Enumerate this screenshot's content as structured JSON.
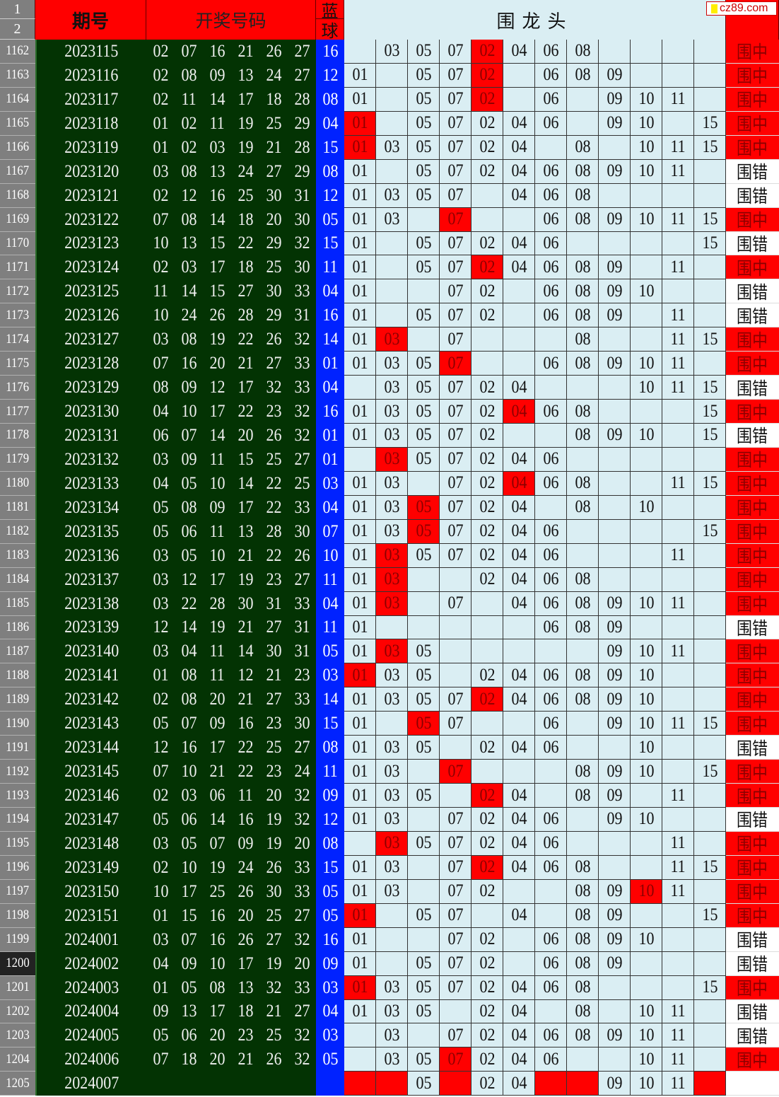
{
  "header": {
    "row1": "1",
    "row2": "2",
    "period": "期号",
    "numbers": "开奖号码",
    "blue_top": "蓝",
    "blue_bottom": "球",
    "group": "围龙头",
    "logo": "cz89.com"
  },
  "colors": {
    "red": "#ff0000",
    "green": "#033303",
    "blue": "#0022ff",
    "cell": "#daeef3"
  },
  "rows": [
    {
      "row": "1162",
      "period": "2023115",
      "numbers": [
        "02",
        "07",
        "16",
        "21",
        "26",
        "27"
      ],
      "blue": "16",
      "cells": [
        "",
        "03",
        "05",
        "07",
        "02",
        "04",
        "06",
        "08",
        "",
        "",
        "",
        ""
      ],
      "hit": [
        4
      ],
      "result": "围中"
    },
    {
      "row": "1163",
      "period": "2023116",
      "numbers": [
        "02",
        "08",
        "09",
        "13",
        "24",
        "27"
      ],
      "blue": "12",
      "cells": [
        "01",
        "",
        "05",
        "07",
        "02",
        "",
        "06",
        "08",
        "09",
        "",
        "",
        ""
      ],
      "hit": [
        4
      ],
      "result": "围中"
    },
    {
      "row": "1164",
      "period": "2023117",
      "numbers": [
        "02",
        "11",
        "14",
        "17",
        "18",
        "28"
      ],
      "blue": "08",
      "cells": [
        "01",
        "",
        "05",
        "07",
        "02",
        "",
        "06",
        "",
        "09",
        "10",
        "11",
        ""
      ],
      "hit": [
        4
      ],
      "result": "围中"
    },
    {
      "row": "1165",
      "period": "2023118",
      "numbers": [
        "01",
        "02",
        "11",
        "19",
        "25",
        "29"
      ],
      "blue": "04",
      "cells": [
        "01",
        "",
        "05",
        "07",
        "02",
        "04",
        "06",
        "",
        "09",
        "10",
        "",
        "15"
      ],
      "hit": [
        0
      ],
      "result": "围中"
    },
    {
      "row": "1166",
      "period": "2023119",
      "numbers": [
        "01",
        "02",
        "03",
        "19",
        "21",
        "28"
      ],
      "blue": "15",
      "cells": [
        "01",
        "03",
        "05",
        "07",
        "02",
        "04",
        "",
        "08",
        "",
        "10",
        "11",
        "15"
      ],
      "hit": [
        0
      ],
      "result": "围中"
    },
    {
      "row": "1167",
      "period": "2023120",
      "numbers": [
        "03",
        "08",
        "13",
        "24",
        "27",
        "29"
      ],
      "blue": "08",
      "cells": [
        "01",
        "",
        "05",
        "07",
        "02",
        "04",
        "06",
        "08",
        "09",
        "10",
        "11",
        ""
      ],
      "hit": [],
      "result": "围错"
    },
    {
      "row": "1168",
      "period": "2023121",
      "numbers": [
        "02",
        "12",
        "16",
        "25",
        "30",
        "31"
      ],
      "blue": "12",
      "cells": [
        "01",
        "03",
        "05",
        "07",
        "",
        "04",
        "06",
        "08",
        "",
        "",
        "",
        ""
      ],
      "hit": [],
      "result": "围错"
    },
    {
      "row": "1169",
      "period": "2023122",
      "numbers": [
        "07",
        "08",
        "14",
        "18",
        "20",
        "30"
      ],
      "blue": "05",
      "cells": [
        "01",
        "03",
        "",
        "07",
        "",
        "",
        "06",
        "08",
        "09",
        "10",
        "11",
        "15"
      ],
      "hit": [
        3
      ],
      "result": "围中"
    },
    {
      "row": "1170",
      "period": "2023123",
      "numbers": [
        "10",
        "13",
        "15",
        "22",
        "29",
        "32"
      ],
      "blue": "15",
      "cells": [
        "01",
        "",
        "05",
        "07",
        "02",
        "04",
        "06",
        "",
        "",
        "",
        "",
        "15"
      ],
      "hit": [],
      "result": "围错"
    },
    {
      "row": "1171",
      "period": "2023124",
      "numbers": [
        "02",
        "03",
        "17",
        "18",
        "25",
        "30"
      ],
      "blue": "11",
      "cells": [
        "01",
        "",
        "05",
        "07",
        "02",
        "04",
        "06",
        "08",
        "09",
        "",
        "11",
        ""
      ],
      "hit": [
        4
      ],
      "result": "围中"
    },
    {
      "row": "1172",
      "period": "2023125",
      "numbers": [
        "11",
        "14",
        "15",
        "27",
        "30",
        "33"
      ],
      "blue": "04",
      "cells": [
        "01",
        "",
        "",
        "07",
        "02",
        "",
        "06",
        "08",
        "09",
        "10",
        "",
        ""
      ],
      "hit": [],
      "result": "围错"
    },
    {
      "row": "1173",
      "period": "2023126",
      "numbers": [
        "10",
        "24",
        "26",
        "28",
        "29",
        "31"
      ],
      "blue": "16",
      "cells": [
        "01",
        "",
        "05",
        "07",
        "02",
        "",
        "06",
        "08",
        "09",
        "",
        "11",
        ""
      ],
      "hit": [],
      "result": "围错"
    },
    {
      "row": "1174",
      "period": "2023127",
      "numbers": [
        "03",
        "08",
        "19",
        "22",
        "26",
        "32"
      ],
      "blue": "14",
      "cells": [
        "01",
        "03",
        "",
        "07",
        "",
        "",
        "",
        "08",
        "",
        "",
        "11",
        "15"
      ],
      "hit": [
        1
      ],
      "result": "围中"
    },
    {
      "row": "1175",
      "period": "2023128",
      "numbers": [
        "07",
        "16",
        "20",
        "21",
        "27",
        "33"
      ],
      "blue": "01",
      "cells": [
        "01",
        "03",
        "05",
        "07",
        "",
        "",
        "06",
        "08",
        "09",
        "10",
        "11",
        ""
      ],
      "hit": [
        3
      ],
      "result": "围中"
    },
    {
      "row": "1176",
      "period": "2023129",
      "numbers": [
        "08",
        "09",
        "12",
        "17",
        "32",
        "33"
      ],
      "blue": "04",
      "cells": [
        "",
        "03",
        "05",
        "07",
        "02",
        "04",
        "",
        "",
        "",
        "10",
        "11",
        "15"
      ],
      "hit": [],
      "result": "围错"
    },
    {
      "row": "1177",
      "period": "2023130",
      "numbers": [
        "04",
        "10",
        "17",
        "22",
        "23",
        "32"
      ],
      "blue": "16",
      "cells": [
        "01",
        "03",
        "05",
        "07",
        "02",
        "04",
        "06",
        "08",
        "",
        "",
        "",
        "15"
      ],
      "hit": [
        5
      ],
      "result": "围中"
    },
    {
      "row": "1178",
      "period": "2023131",
      "numbers": [
        "06",
        "07",
        "14",
        "20",
        "26",
        "32"
      ],
      "blue": "01",
      "cells": [
        "01",
        "03",
        "05",
        "07",
        "02",
        "",
        "",
        "08",
        "09",
        "10",
        "",
        "15"
      ],
      "hit": [],
      "result": "围错"
    },
    {
      "row": "1179",
      "period": "2023132",
      "numbers": [
        "03",
        "09",
        "11",
        "15",
        "25",
        "27"
      ],
      "blue": "01",
      "cells": [
        "",
        "03",
        "05",
        "07",
        "02",
        "04",
        "06",
        "",
        "",
        "",
        "",
        ""
      ],
      "hit": [
        1
      ],
      "result": "围中"
    },
    {
      "row": "1180",
      "period": "2023133",
      "numbers": [
        "04",
        "05",
        "10",
        "14",
        "22",
        "25"
      ],
      "blue": "03",
      "cells": [
        "01",
        "03",
        "",
        "07",
        "02",
        "04",
        "06",
        "08",
        "",
        "",
        "11",
        "15"
      ],
      "hit": [
        5
      ],
      "result": "围中"
    },
    {
      "row": "1181",
      "period": "2023134",
      "numbers": [
        "05",
        "08",
        "09",
        "17",
        "22",
        "33"
      ],
      "blue": "04",
      "cells": [
        "01",
        "03",
        "05",
        "07",
        "02",
        "04",
        "",
        "08",
        "",
        "10",
        "",
        ""
      ],
      "hit": [
        2
      ],
      "result": "围中"
    },
    {
      "row": "1182",
      "period": "2023135",
      "numbers": [
        "05",
        "06",
        "11",
        "13",
        "28",
        "30"
      ],
      "blue": "07",
      "cells": [
        "01",
        "03",
        "05",
        "07",
        "02",
        "04",
        "06",
        "",
        "",
        "",
        "",
        "15"
      ],
      "hit": [
        2
      ],
      "result": "围中"
    },
    {
      "row": "1183",
      "period": "2023136",
      "numbers": [
        "03",
        "05",
        "10",
        "21",
        "22",
        "26"
      ],
      "blue": "10",
      "cells": [
        "01",
        "03",
        "05",
        "07",
        "02",
        "04",
        "06",
        "",
        "",
        "",
        "11",
        ""
      ],
      "hit": [
        1
      ],
      "result": "围中"
    },
    {
      "row": "1184",
      "period": "2023137",
      "numbers": [
        "03",
        "12",
        "17",
        "19",
        "23",
        "27"
      ],
      "blue": "11",
      "cells": [
        "01",
        "03",
        "",
        "",
        "02",
        "04",
        "06",
        "08",
        "",
        "",
        "",
        ""
      ],
      "hit": [
        1
      ],
      "result": "围中"
    },
    {
      "row": "1185",
      "period": "2023138",
      "numbers": [
        "03",
        "22",
        "28",
        "30",
        "31",
        "33"
      ],
      "blue": "04",
      "cells": [
        "01",
        "03",
        "",
        "07",
        "",
        "04",
        "06",
        "08",
        "09",
        "10",
        "11",
        ""
      ],
      "hit": [
        1
      ],
      "result": "围中"
    },
    {
      "row": "1186",
      "period": "2023139",
      "numbers": [
        "12",
        "14",
        "19",
        "21",
        "27",
        "31"
      ],
      "blue": "11",
      "cells": [
        "01",
        "",
        "",
        "",
        "",
        "",
        "06",
        "08",
        "09",
        "",
        "",
        ""
      ],
      "hit": [],
      "result": "围错"
    },
    {
      "row": "1187",
      "period": "2023140",
      "numbers": [
        "03",
        "04",
        "11",
        "14",
        "30",
        "31"
      ],
      "blue": "05",
      "cells": [
        "01",
        "03",
        "05",
        "",
        "",
        "",
        "",
        "",
        "09",
        "10",
        "11",
        ""
      ],
      "hit": [
        1
      ],
      "result": "围中"
    },
    {
      "row": "1188",
      "period": "2023141",
      "numbers": [
        "01",
        "08",
        "11",
        "12",
        "21",
        "23"
      ],
      "blue": "03",
      "cells": [
        "01",
        "03",
        "05",
        "",
        "02",
        "04",
        "06",
        "08",
        "09",
        "10",
        "",
        ""
      ],
      "hit": [
        0
      ],
      "result": "围中"
    },
    {
      "row": "1189",
      "period": "2023142",
      "numbers": [
        "02",
        "08",
        "20",
        "21",
        "27",
        "33"
      ],
      "blue": "14",
      "cells": [
        "01",
        "03",
        "05",
        "07",
        "02",
        "04",
        "06",
        "08",
        "09",
        "10",
        "",
        ""
      ],
      "hit": [
        4
      ],
      "result": "围中"
    },
    {
      "row": "1190",
      "period": "2023143",
      "numbers": [
        "05",
        "07",
        "09",
        "16",
        "23",
        "30"
      ],
      "blue": "15",
      "cells": [
        "01",
        "",
        "05",
        "07",
        "",
        "",
        "06",
        "",
        "09",
        "10",
        "11",
        "15"
      ],
      "hit": [
        2
      ],
      "result": "围中"
    },
    {
      "row": "1191",
      "period": "2023144",
      "numbers": [
        "12",
        "16",
        "17",
        "22",
        "25",
        "27"
      ],
      "blue": "08",
      "cells": [
        "01",
        "03",
        "05",
        "",
        "02",
        "04",
        "06",
        "",
        "",
        "10",
        "",
        ""
      ],
      "hit": [],
      "result": "围错"
    },
    {
      "row": "1192",
      "period": "2023145",
      "numbers": [
        "07",
        "10",
        "21",
        "22",
        "23",
        "24"
      ],
      "blue": "11",
      "cells": [
        "01",
        "03",
        "",
        "07",
        "",
        "",
        "",
        "08",
        "09",
        "10",
        "",
        "15"
      ],
      "hit": [
        3
      ],
      "result": "围中"
    },
    {
      "row": "1193",
      "period": "2023146",
      "numbers": [
        "02",
        "03",
        "06",
        "11",
        "20",
        "32"
      ],
      "blue": "09",
      "cells": [
        "01",
        "03",
        "05",
        "",
        "02",
        "04",
        "",
        "08",
        "09",
        "",
        "11",
        ""
      ],
      "hit": [
        4
      ],
      "result": "围中"
    },
    {
      "row": "1194",
      "period": "2023147",
      "numbers": [
        "05",
        "06",
        "14",
        "16",
        "19",
        "32"
      ],
      "blue": "12",
      "cells": [
        "01",
        "03",
        "",
        "07",
        "02",
        "04",
        "06",
        "",
        "09",
        "10",
        "",
        ""
      ],
      "hit": [],
      "result": "围错"
    },
    {
      "row": "1195",
      "period": "2023148",
      "numbers": [
        "03",
        "05",
        "07",
        "09",
        "19",
        "20"
      ],
      "blue": "08",
      "cells": [
        "",
        "03",
        "05",
        "07",
        "02",
        "04",
        "06",
        "",
        "",
        "",
        "11",
        ""
      ],
      "hit": [
        1
      ],
      "result": "围中"
    },
    {
      "row": "1196",
      "period": "2023149",
      "numbers": [
        "02",
        "10",
        "19",
        "24",
        "26",
        "33"
      ],
      "blue": "15",
      "cells": [
        "01",
        "03",
        "",
        "07",
        "02",
        "04",
        "06",
        "08",
        "",
        "",
        "11",
        "15"
      ],
      "hit": [
        4
      ],
      "result": "围中"
    },
    {
      "row": "1197",
      "period": "2023150",
      "numbers": [
        "10",
        "17",
        "25",
        "26",
        "30",
        "33"
      ],
      "blue": "05",
      "cells": [
        "01",
        "03",
        "",
        "07",
        "02",
        "",
        "",
        "08",
        "09",
        "10",
        "11",
        ""
      ],
      "hit": [
        9
      ],
      "result": "围中"
    },
    {
      "row": "1198",
      "period": "2023151",
      "numbers": [
        "01",
        "15",
        "16",
        "20",
        "25",
        "27"
      ],
      "blue": "05",
      "cells": [
        "01",
        "",
        "05",
        "07",
        "",
        "04",
        "",
        "08",
        "09",
        "",
        "",
        "15"
      ],
      "hit": [
        0
      ],
      "result": "围中"
    },
    {
      "row": "1199",
      "period": "2024001",
      "numbers": [
        "03",
        "07",
        "16",
        "26",
        "27",
        "32"
      ],
      "blue": "16",
      "cells": [
        "01",
        "",
        "",
        "07",
        "02",
        "",
        "06",
        "08",
        "09",
        "10",
        "",
        ""
      ],
      "hit": [],
      "result": "围错"
    },
    {
      "row": "1200",
      "period": "2024002",
      "numbers": [
        "04",
        "09",
        "10",
        "17",
        "19",
        "20"
      ],
      "blue": "09",
      "cells": [
        "01",
        "",
        "05",
        "07",
        "02",
        "",
        "06",
        "08",
        "09",
        "",
        "",
        ""
      ],
      "hit": [],
      "result": "围错",
      "selected": true
    },
    {
      "row": "1201",
      "period": "2024003",
      "numbers": [
        "01",
        "05",
        "08",
        "13",
        "32",
        "33"
      ],
      "blue": "03",
      "cells": [
        "01",
        "03",
        "05",
        "07",
        "02",
        "04",
        "06",
        "08",
        "",
        "",
        "",
        "15"
      ],
      "hit": [
        0
      ],
      "result": "围中"
    },
    {
      "row": "1202",
      "period": "2024004",
      "numbers": [
        "09",
        "13",
        "17",
        "18",
        "21",
        "27"
      ],
      "blue": "04",
      "cells": [
        "01",
        "03",
        "05",
        "",
        "02",
        "04",
        "",
        "08",
        "",
        "10",
        "11",
        ""
      ],
      "hit": [],
      "result": "围错"
    },
    {
      "row": "1203",
      "period": "2024005",
      "numbers": [
        "05",
        "06",
        "20",
        "23",
        "25",
        "32"
      ],
      "blue": "03",
      "cells": [
        "",
        "03",
        "",
        "07",
        "02",
        "04",
        "06",
        "08",
        "09",
        "10",
        "11",
        ""
      ],
      "hit": [],
      "result": "围错"
    },
    {
      "row": "1204",
      "period": "2024006",
      "numbers": [
        "07",
        "18",
        "20",
        "21",
        "26",
        "32"
      ],
      "blue": "05",
      "cells": [
        "",
        "03",
        "05",
        "07",
        "02",
        "04",
        "06",
        "",
        "",
        "10",
        "11",
        ""
      ],
      "hit": [
        3
      ],
      "result": "围中"
    },
    {
      "row": "1205",
      "period": "2024007",
      "numbers": [
        "",
        "",
        "",
        "",
        "",
        ""
      ],
      "blue": "",
      "cells": [
        "",
        "",
        "05",
        "",
        "02",
        "04",
        "",
        "",
        "09",
        "10",
        "11",
        ""
      ],
      "hit": [
        0,
        1,
        3,
        6,
        7,
        11
      ],
      "result": ""
    }
  ]
}
